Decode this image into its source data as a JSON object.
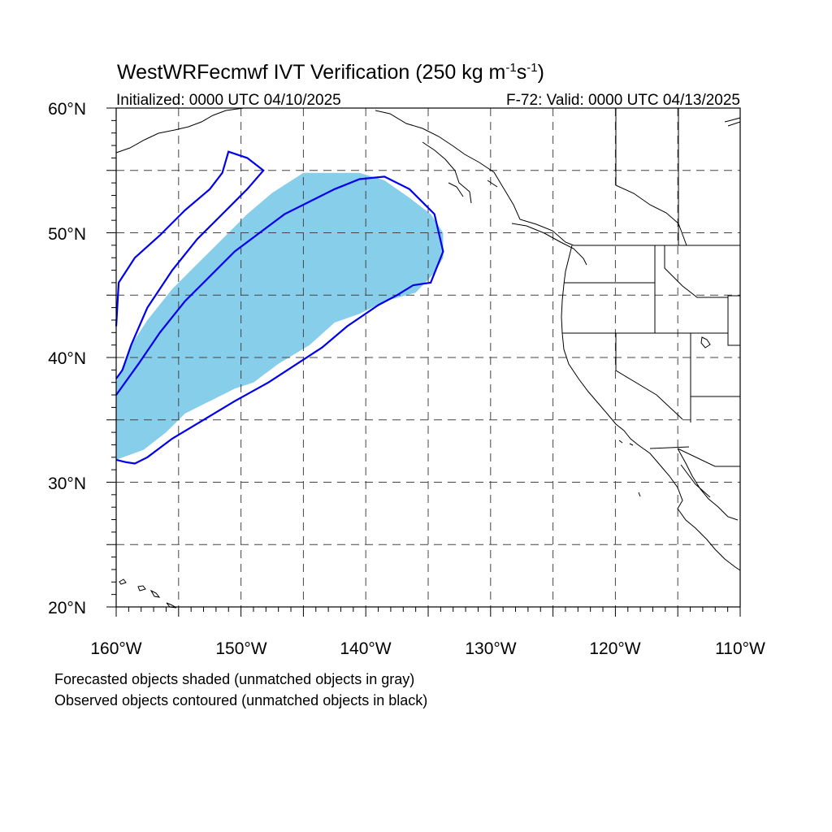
{
  "title": {
    "main": "WestWRFecmwf IVT Verification (250 kg m",
    "sup1": "-1",
    "mid": "s",
    "sup2": "-1",
    "end": ")"
  },
  "subtitle_left": "Initialized: 0000 UTC 04/10/2025",
  "subtitle_right": "F-72: Valid: 0000 UTC 04/13/2025",
  "axes": {
    "lon_labels": [
      "160°W",
      "150°W",
      "140°W",
      "130°W",
      "120°W",
      "110°W"
    ],
    "lat_labels": [
      "60°N",
      "50°N",
      "40°N",
      "30°N",
      "20°N"
    ]
  },
  "map": {
    "lon_range": [
      -160,
      -110
    ],
    "lat_range": [
      20,
      60
    ],
    "gridlines": "dashed every 5°",
    "forecast_object": {
      "fill": "#87ceeb",
      "lonlat": [
        [
          -160,
          31.8
        ],
        [
          -157.8,
          32.6
        ],
        [
          -156,
          34
        ],
        [
          -154.5,
          35.5
        ],
        [
          -152.5,
          36.5
        ],
        [
          -150.5,
          37.5
        ],
        [
          -149,
          38
        ],
        [
          -147,
          39.5
        ],
        [
          -144.5,
          41
        ],
        [
          -142.5,
          42.8
        ],
        [
          -140.5,
          43.5
        ],
        [
          -138.5,
          44.5
        ],
        [
          -136,
          45.2
        ],
        [
          -134.5,
          46.8
        ],
        [
          -133.8,
          48
        ],
        [
          -133.8,
          50
        ],
        [
          -134.8,
          51.5
        ],
        [
          -136.5,
          52.8
        ],
        [
          -138.5,
          54.2
        ],
        [
          -140.5,
          54.8
        ],
        [
          -142.5,
          54.8
        ],
        [
          -145,
          54.8
        ],
        [
          -147.5,
          53.2
        ],
        [
          -149.5,
          51.5
        ],
        [
          -151.5,
          49.5
        ],
        [
          -153.5,
          47.5
        ],
        [
          -155.5,
          45.5
        ],
        [
          -157.5,
          43
        ],
        [
          -158.8,
          41
        ],
        [
          -160,
          38
        ]
      ]
    },
    "observed_objects": {
      "stroke": "#0000ee",
      "outer_lonlat": [
        [
          -160,
          42.5
        ],
        [
          -159.8,
          46
        ],
        [
          -158.5,
          48
        ],
        [
          -156.5,
          49.8
        ],
        [
          -154.5,
          51.8
        ],
        [
          -152.5,
          53.5
        ],
        [
          -151.5,
          54.8
        ],
        [
          -151,
          56.5
        ],
        [
          -149.5,
          56
        ],
        [
          -148.2,
          55
        ],
        [
          -149.5,
          53.5
        ],
        [
          -151.5,
          51.5
        ],
        [
          -153.5,
          49.5
        ],
        [
          -155.5,
          47
        ],
        [
          -157.5,
          44
        ],
        [
          -158.8,
          41
        ],
        [
          -159.5,
          39
        ],
        [
          -160,
          38.3
        ]
      ],
      "inner_lonlat": [
        [
          -160,
          37
        ],
        [
          -158.2,
          39.5
        ],
        [
          -156.5,
          42
        ],
        [
          -154.5,
          44.5
        ],
        [
          -152.5,
          46.5
        ],
        [
          -150.5,
          48.5
        ],
        [
          -148.5,
          50
        ],
        [
          -146.5,
          51.5
        ],
        [
          -144.5,
          52.5
        ],
        [
          -142.5,
          53.5
        ],
        [
          -140.5,
          54.3
        ],
        [
          -138.5,
          54.5
        ],
        [
          -136.5,
          53.5
        ],
        [
          -134.5,
          51.5
        ],
        [
          -133.8,
          48.5
        ],
        [
          -134.8,
          46
        ],
        [
          -136.2,
          45.8
        ],
        [
          -137.5,
          45
        ],
        [
          -139,
          44.2
        ],
        [
          -141.5,
          42.5
        ],
        [
          -143.5,
          40.8
        ],
        [
          -145.5,
          39.5
        ],
        [
          -147.8,
          38
        ],
        [
          -150.5,
          36.5
        ],
        [
          -153,
          35
        ],
        [
          -155.5,
          33.5
        ],
        [
          -157.5,
          32
        ],
        [
          -158.5,
          31.5
        ],
        [
          -159.2,
          31.6
        ],
        [
          -160,
          31.8
        ]
      ]
    }
  },
  "notes": {
    "line1": "Forecasted objects shaded (unmatched objects in gray)",
    "line2": "Observed objects contoured (unmatched objects in black)"
  },
  "colors": {
    "forecast_fill": "#87ceeb",
    "observed_contour": "#0000ee",
    "coast": "#000000"
  }
}
